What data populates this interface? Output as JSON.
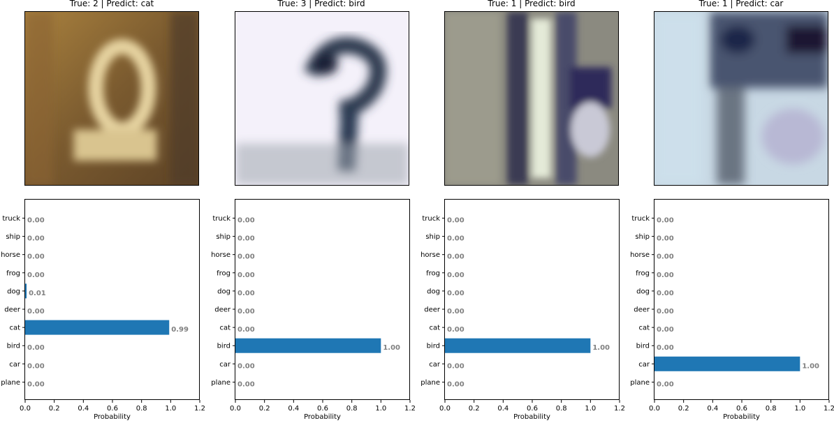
{
  "chart_data": [
    {
      "type": "bar",
      "orientation": "horizontal",
      "title": "True: 2 | Predict: cat",
      "xlabel": "Probability",
      "categories": [
        "plane",
        "car",
        "bird",
        "cat",
        "deer",
        "dog",
        "frog",
        "horse",
        "ship",
        "truck"
      ],
      "values": [
        0.0,
        0.0,
        0.0,
        0.99,
        0.0,
        0.01,
        0.0,
        0.0,
        0.0,
        0.0
      ],
      "value_labels": [
        "0.00",
        "0.00",
        "0.00",
        "0.99",
        "0.00",
        "0.01",
        "0.00",
        "0.00",
        "0.00",
        "0.00"
      ],
      "xlim": [
        0,
        1.2
      ],
      "xticks": [
        "0.0",
        "0.2",
        "0.4",
        "0.6",
        "0.8",
        "1.0",
        "1.2"
      ],
      "bar_color": "#1f77b4",
      "label_color": "#808080"
    },
    {
      "type": "bar",
      "orientation": "horizontal",
      "title": "True: 3 | Predict: bird",
      "xlabel": "Probability",
      "categories": [
        "plane",
        "car",
        "bird",
        "cat",
        "deer",
        "dog",
        "frog",
        "horse",
        "ship",
        "truck"
      ],
      "values": [
        0.0,
        0.0,
        1.0,
        0.0,
        0.0,
        0.0,
        0.0,
        0.0,
        0.0,
        0.0
      ],
      "value_labels": [
        "0.00",
        "0.00",
        "1.00",
        "0.00",
        "0.00",
        "0.00",
        "0.00",
        "0.00",
        "0.00",
        "0.00"
      ],
      "xlim": [
        0,
        1.2
      ],
      "xticks": [
        "0.0",
        "0.2",
        "0.4",
        "0.6",
        "0.8",
        "1.0",
        "1.2"
      ],
      "bar_color": "#1f77b4",
      "label_color": "#808080"
    },
    {
      "type": "bar",
      "orientation": "horizontal",
      "title": "True: 1 | Predict: bird",
      "xlabel": "Probability",
      "categories": [
        "plane",
        "car",
        "bird",
        "cat",
        "deer",
        "dog",
        "frog",
        "horse",
        "ship",
        "truck"
      ],
      "values": [
        0.0,
        0.0,
        1.0,
        0.0,
        0.0,
        0.0,
        0.0,
        0.0,
        0.0,
        0.0
      ],
      "value_labels": [
        "0.00",
        "0.00",
        "1.00",
        "0.00",
        "0.00",
        "0.00",
        "0.00",
        "0.00",
        "0.00",
        "0.00"
      ],
      "xlim": [
        0,
        1.2
      ],
      "xticks": [
        "0.0",
        "0.2",
        "0.4",
        "0.6",
        "0.8",
        "1.0",
        "1.2"
      ],
      "bar_color": "#1f77b4",
      "label_color": "#808080"
    },
    {
      "type": "bar",
      "orientation": "horizontal",
      "title": "True: 1 | Predict: car",
      "xlabel": "Probability",
      "categories": [
        "plane",
        "car",
        "bird",
        "cat",
        "deer",
        "dog",
        "frog",
        "horse",
        "ship",
        "truck"
      ],
      "values": [
        0.0,
        1.0,
        0.0,
        0.0,
        0.0,
        0.0,
        0.0,
        0.0,
        0.0,
        0.0
      ],
      "value_labels": [
        "0.00",
        "1.00",
        "0.00",
        "0.00",
        "0.00",
        "0.00",
        "0.00",
        "0.00",
        "0.00",
        "0.00"
      ],
      "xlim": [
        0,
        1.2
      ],
      "xticks": [
        "0.0",
        "0.2",
        "0.4",
        "0.6",
        "0.8",
        "1.0",
        "1.2"
      ],
      "bar_color": "#1f77b4",
      "label_color": "#808080"
    }
  ]
}
